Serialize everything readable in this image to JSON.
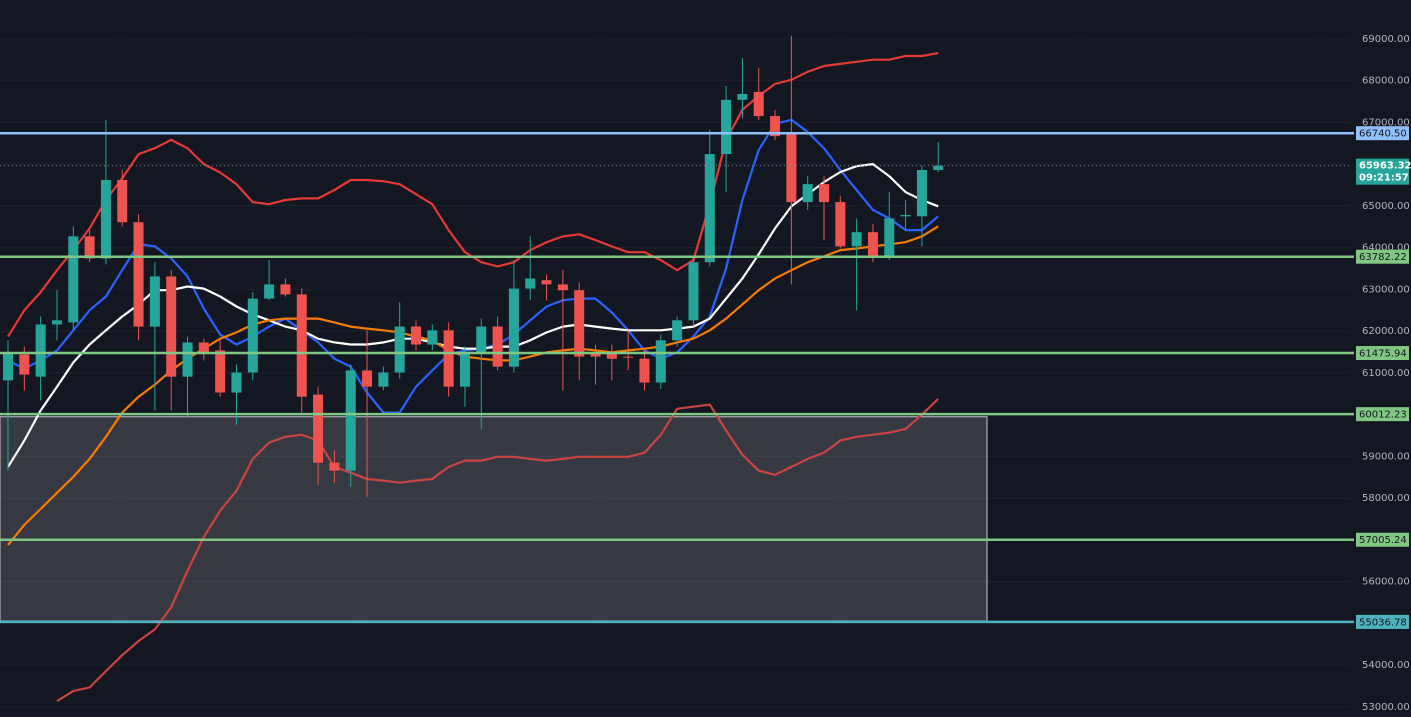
{
  "chart_data": {
    "type": "candlestick",
    "ylim": [
      52760,
      69930
    ],
    "yticks": [
      {
        "value": 53000,
        "label": "53000.00"
      },
      {
        "value": 54000,
        "label": "54000.00"
      },
      {
        "value": 55000,
        "label": "55000.00"
      },
      {
        "value": 56000,
        "label": "56000.00"
      },
      {
        "value": 57000,
        "label": "57000.00"
      },
      {
        "value": 58000,
        "label": "58000.00"
      },
      {
        "value": 59000,
        "label": "59000.00"
      },
      {
        "value": 60000,
        "label": "60000.00"
      },
      {
        "value": 61000,
        "label": "61000.00"
      },
      {
        "value": 62000,
        "label": "62000.00"
      },
      {
        "value": 63000,
        "label": "63000.00"
      },
      {
        "value": 64000,
        "label": "64000.00"
      },
      {
        "value": 65000,
        "label": "65000.00"
      },
      {
        "value": 66000,
        "label": "66000.00"
      },
      {
        "value": 67000,
        "label": "67000.00"
      },
      {
        "value": 68000,
        "label": "68000.00"
      },
      {
        "value": 69000,
        "label": "69000.00"
      }
    ],
    "grid": true,
    "up_color": "#26a69a",
    "down_color": "#ef5350",
    "candles": {
      "open": [
        60820,
        61440,
        60910,
        62160,
        62210,
        64270,
        63740,
        65620,
        64610,
        62110,
        63310,
        60910,
        61730,
        61540,
        60530,
        61010,
        62780,
        63120,
        62880,
        60480,
        58850,
        58660,
        61060,
        60670,
        61010,
        62110,
        61680,
        62020,
        60670,
        61490,
        62110,
        61150,
        63020,
        63220,
        63120,
        62980,
        61490,
        61490,
        61390,
        61340,
        60770,
        61780,
        62260,
        63650,
        66240,
        67540,
        67730,
        67150,
        66720,
        65090,
        65520,
        65090,
        64030,
        64370,
        63790,
        64750,
        64750,
        65860
      ],
      "high": [
        61780,
        61630,
        62350,
        62980,
        64510,
        64420,
        67060,
        65860,
        64800,
        63650,
        63460,
        61870,
        61820,
        61780,
        61200,
        62930,
        63700,
        63260,
        63020,
        60670,
        59140,
        61200,
        62020,
        61150,
        62690,
        62260,
        62160,
        62210,
        61630,
        62300,
        62350,
        63700,
        64270,
        63360,
        63460,
        63170,
        61680,
        61680,
        62020,
        61540,
        61920,
        62350,
        63790,
        66820,
        67870,
        68540,
        68300,
        67300,
        69070,
        65710,
        65710,
        65230,
        64700,
        64560,
        65330,
        65140,
        65960,
        66530
      ],
      "low": [
        58660,
        60580,
        60340,
        61780,
        62020,
        63650,
        63600,
        64510,
        61780,
        60100,
        60100,
        59950,
        61300,
        60430,
        59760,
        60820,
        62740,
        62830,
        60050,
        58320,
        58370,
        58270,
        58030,
        60580,
        60860,
        61540,
        61540,
        60430,
        60190,
        59660,
        61060,
        61010,
        62740,
        62740,
        60580,
        60820,
        60720,
        60820,
        61060,
        60580,
        60620,
        61630,
        62110,
        63550,
        65330,
        67100,
        67060,
        66580,
        63120,
        64900,
        64180,
        63980,
        62500,
        63650,
        63700,
        64420,
        64030,
        65810
      ],
      "close": [
        61490,
        60960,
        62160,
        62260,
        64270,
        63740,
        65620,
        64610,
        62110,
        63310,
        60910,
        61730,
        61490,
        60530,
        61010,
        62780,
        63120,
        62880,
        60430,
        58850,
        58660,
        61060,
        60670,
        61010,
        62110,
        61680,
        62020,
        60670,
        61490,
        62110,
        61150,
        63020,
        63260,
        63120,
        62980,
        61390,
        61390,
        61340,
        61370,
        60770,
        61780,
        62260,
        63650,
        66240,
        67540,
        67680,
        67150,
        66670,
        65090,
        65520,
        65090,
        64030,
        64370,
        63790,
        64700,
        64780,
        65860,
        65963.32
      ]
    },
    "lines": [
      {
        "color": "#e53935",
        "values": [
          61870,
          62500,
          62930,
          63460,
          63940,
          64460,
          65140,
          65660,
          66240,
          66380,
          66580,
          66380,
          66000,
          65800,
          65520,
          65090,
          65040,
          65140,
          65180,
          65180,
          65380,
          65620,
          65620,
          65590,
          65520,
          65280,
          65040,
          64420,
          63890,
          63650,
          63550,
          63650,
          63940,
          64130,
          64270,
          64320,
          64180,
          64030,
          63890,
          63890,
          63700,
          63460,
          63700,
          65040,
          66580,
          67300,
          67630,
          67920,
          68020,
          68210,
          68350,
          68400,
          68450,
          68500,
          68500,
          68590,
          68590,
          68660
        ]
      },
      {
        "color": "#c94343",
        "values": [
          null,
          null,
          null,
          53140,
          53380,
          53470,
          53860,
          54240,
          54580,
          54860,
          55390,
          56260,
          57070,
          57700,
          58180,
          58940,
          59330,
          59470,
          59520,
          59380,
          58750,
          58610,
          58460,
          58420,
          58370,
          58420,
          58460,
          58750,
          58900,
          58900,
          58990,
          58990,
          58940,
          58900,
          58940,
          58990,
          58990,
          58990,
          58990,
          59090,
          59520,
          60140,
          60190,
          60240,
          59620,
          59040,
          58660,
          58560,
          58750,
          58940,
          59090,
          59380,
          59470,
          59520,
          59570,
          59660,
          60000,
          60380
        ]
      },
      {
        "color": "#2962ff",
        "values": [
          61300,
          61100,
          61300,
          61540,
          62020,
          62500,
          62830,
          63460,
          64080,
          64030,
          63740,
          63310,
          62540,
          61920,
          61680,
          61870,
          62110,
          62300,
          62020,
          61730,
          61340,
          61150,
          60530,
          60050,
          60050,
          60670,
          61060,
          61440,
          61540,
          61580,
          61680,
          61920,
          62260,
          62590,
          62740,
          62780,
          62780,
          62450,
          62020,
          61540,
          61340,
          61490,
          61870,
          62350,
          63500,
          65140,
          66340,
          66960,
          67060,
          66770,
          66380,
          65860,
          65380,
          64900,
          64700,
          64420,
          64420,
          64750
        ]
      },
      {
        "color": "#ffffff",
        "values": [
          58750,
          59380,
          60100,
          60670,
          61250,
          61680,
          62020,
          62350,
          62640,
          62980,
          62980,
          63070,
          63020,
          62830,
          62590,
          62400,
          62260,
          62110,
          62020,
          61820,
          61730,
          61680,
          61680,
          61730,
          61820,
          61820,
          61730,
          61630,
          61580,
          61580,
          61630,
          61630,
          61780,
          61970,
          62110,
          62160,
          62110,
          62060,
          62020,
          62020,
          62020,
          62060,
          62110,
          62300,
          62780,
          63260,
          63840,
          64460,
          64990,
          65280,
          65570,
          65810,
          65950,
          66000,
          65710,
          65330,
          65140,
          64990
        ]
      },
      {
        "color": "#f57c00",
        "values": [
          56880,
          57360,
          57740,
          58130,
          58510,
          58940,
          59470,
          60050,
          60430,
          60720,
          61060,
          61340,
          61580,
          61820,
          61970,
          62160,
          62260,
          62300,
          62300,
          62300,
          62210,
          62110,
          62060,
          62020,
          61970,
          61870,
          61780,
          61540,
          61390,
          61340,
          61300,
          61300,
          61390,
          61490,
          61540,
          61580,
          61540,
          61490,
          61540,
          61580,
          61630,
          61730,
          61820,
          62020,
          62300,
          62640,
          62980,
          63260,
          63460,
          63650,
          63790,
          63940,
          63980,
          64030,
          64080,
          64130,
          64270,
          64510
        ]
      }
    ],
    "levels": [
      {
        "value": 66740.5,
        "label": "66740.50",
        "color": "#90bff9"
      },
      {
        "value": 63782.22,
        "label": "63782.22",
        "color": "#81c784"
      },
      {
        "value": 61475.94,
        "label": "61475.94",
        "color": "#81c784"
      },
      {
        "value": 60012.23,
        "label": "60012.23",
        "color": "#81c784"
      },
      {
        "value": 57005.24,
        "label": "57005.24",
        "color": "#81c784"
      },
      {
        "value": 55036.78,
        "label": "55036.78",
        "color": "#4fb3bf"
      }
    ],
    "zone": {
      "top": 59950,
      "bottom": 55060,
      "color": "#9e9e9e"
    },
    "last_price": 65963.32,
    "countdown": "09:21:57",
    "last_color": "#26a69a"
  }
}
